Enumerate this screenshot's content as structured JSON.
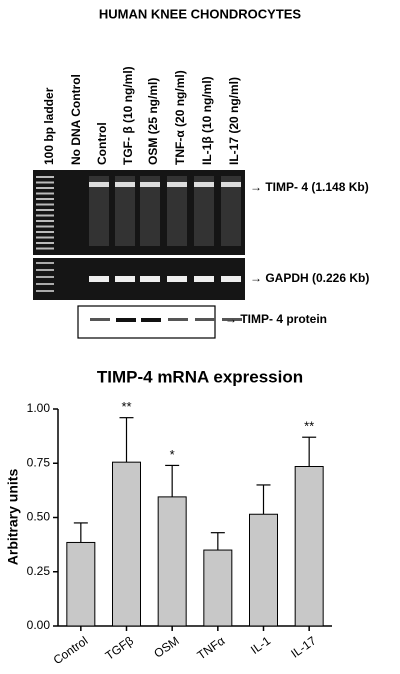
{
  "figure_title": "HUMAN KNEE CHONDROCYTES",
  "gel": {
    "lanes": [
      "100 bp ladder",
      "No DNA Control",
      "Control",
      "TGF- β (10 ng/ml)",
      "OSM (25 ng/ml)",
      "TNF-α (20 ng/ml)",
      "IL-1β (10 ng/ml)",
      "IL-17 (20 ng/ml)"
    ],
    "bands": [
      "→ TIMP- 4 (1.148 Kb)",
      "→ GAPDH (0.226 Kb)",
      "→ TIMP- 4 protein"
    ]
  },
  "chart_data": {
    "type": "bar",
    "title": "TIMP-4 mRNA expression",
    "y_label": "Arbitrary units",
    "categories": [
      "Control",
      "TGFβ",
      "OSM",
      "TNFα",
      "IL-1",
      "IL-17"
    ],
    "values": [
      0.385,
      0.755,
      0.595,
      0.35,
      0.515,
      0.735
    ],
    "errors": [
      0.09,
      0.205,
      0.145,
      0.08,
      0.135,
      0.135
    ],
    "significance": [
      null,
      "**",
      "*",
      null,
      null,
      "**"
    ],
    "color": "#c8c8c8",
    "ylim": [
      0,
      1
    ],
    "yticks": [
      {
        "value": 0,
        "label": "0.00"
      },
      {
        "value": 0.25,
        "label": "0.25"
      },
      {
        "value": 0.5,
        "label": "0.50"
      },
      {
        "value": 0.75,
        "label": "0.75"
      },
      {
        "value": 1,
        "label": "1.00"
      }
    ]
  }
}
